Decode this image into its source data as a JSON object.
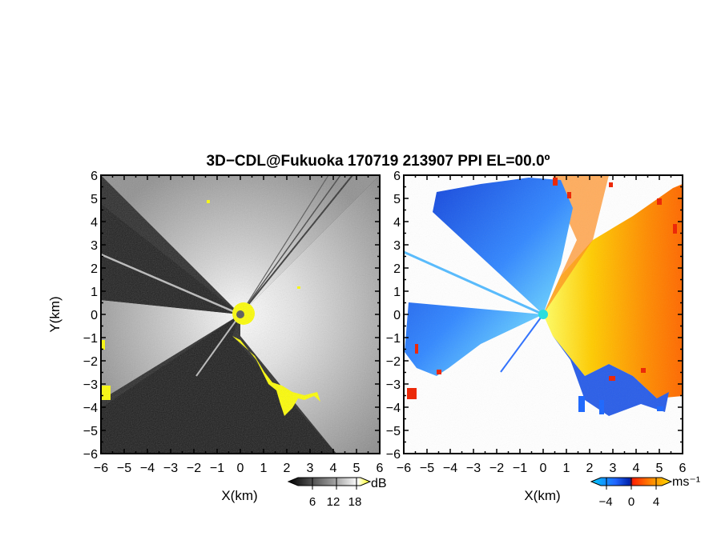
{
  "title": "3D−CDL@Fukuoka 170719 213907 PPI EL=00.0º",
  "chart_data": [
    {
      "type": "heatmap",
      "panel": "reflectivity",
      "xlabel": "X(km)",
      "ylabel": "Y(km)",
      "xlim": [
        -6,
        6
      ],
      "ylim": [
        -6,
        6
      ],
      "xticks": [
        "−6",
        "−5",
        "−4",
        "−3",
        "−2",
        "−1",
        "0",
        "1",
        "2",
        "3",
        "4",
        "5",
        "6"
      ],
      "yticks": [
        "6",
        "5",
        "4",
        "3",
        "2",
        "1",
        "0",
        "−1",
        "−2",
        "−3",
        "−4",
        "−5",
        "−6"
      ],
      "colorbar": {
        "unit": "dB",
        "ticks": [
          "6",
          "12",
          "18"
        ],
        "colors": [
          "#000000",
          "#555555",
          "#aaaaaa",
          "#ffffff",
          "#ffff00"
        ]
      }
    },
    {
      "type": "heatmap",
      "panel": "doppler-velocity",
      "xlabel": "X(km)",
      "xlim": [
        -6,
        6
      ],
      "ylim": [
        -6,
        6
      ],
      "xticks": [
        "−6",
        "−5",
        "−4",
        "−3",
        "−2",
        "−1",
        "0",
        "1",
        "2",
        "3",
        "4",
        "5",
        "6"
      ],
      "yticks": [
        "6",
        "5",
        "4",
        "3",
        "2",
        "1",
        "0",
        "−1",
        "−2",
        "−3",
        "−4",
        "−5",
        "−6"
      ],
      "colorbar": {
        "unit": "ms⁻¹",
        "ticks": [
          "−4",
          "0",
          "4"
        ],
        "colors": [
          "#00ccff",
          "#2266ff",
          "#0022aa",
          "#ff2200",
          "#ff8800",
          "#ffdd00"
        ]
      }
    }
  ]
}
